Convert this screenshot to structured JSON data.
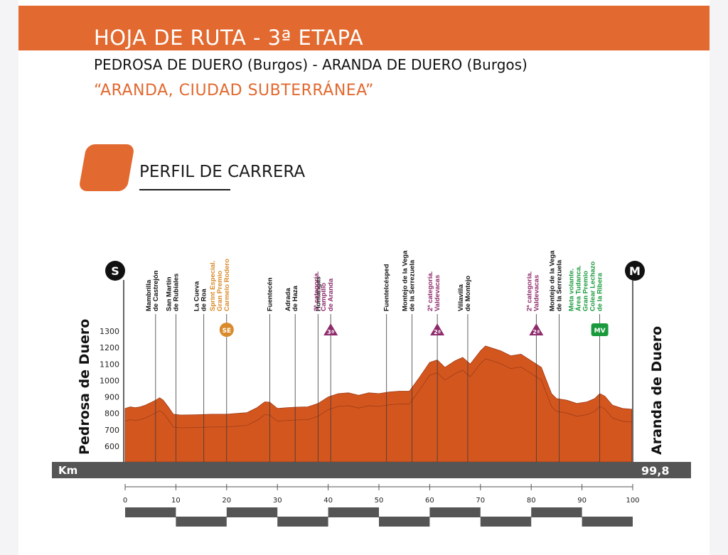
{
  "header": {
    "title": "HOJA DE RUTA - 3ª ETAPA",
    "route": "PEDROSA DE DUERO (Burgos) - ARANDA DE DUERO (Burgos)",
    "tagline": "“ARANDA, CIUDAD SUBTERRÁNEA”"
  },
  "section": {
    "title": "PERFIL DE CARRERA"
  },
  "colors": {
    "accent": "#e2692f",
    "profile": "#d4561f",
    "kom": "#8e2a6b",
    "sprint": "#d98a2a",
    "intermediate": "#1a9a3c",
    "bar": "#555555"
  },
  "profile": {
    "start_marker": "S",
    "finish_marker": "M",
    "start_town": "Pedrosa de Duero",
    "finish_town": "Aranda de Duero",
    "km_label": "Km",
    "total_km": "99,8",
    "y_ticks": [
      "1300",
      "1200",
      "1100",
      "1000",
      "900",
      "800",
      "700",
      "600"
    ],
    "x_ticks": [
      "0",
      "10",
      "20",
      "30",
      "40",
      "50",
      "60",
      "70",
      "80",
      "90",
      "100"
    ],
    "waypoints": [
      {
        "km": 6.0,
        "lines": [
          "Mambrilla",
          "de Castrejón"
        ],
        "kind": "town"
      },
      {
        "km": 10.0,
        "lines": [
          "San Martín",
          "de Rubiales"
        ],
        "kind": "town"
      },
      {
        "km": 15.5,
        "lines": [
          "La Cueva",
          "de Roa"
        ],
        "kind": "town"
      },
      {
        "km": 20.0,
        "lines": [
          "Sprint Especial.",
          "Gran Premio",
          "Carmelo Rodero"
        ],
        "kind": "sprint",
        "badge": "SE"
      },
      {
        "km": 28.5,
        "lines": [
          "Fuentecén"
        ],
        "kind": "town"
      },
      {
        "km": 33.5,
        "lines": [
          "Adrada",
          "de Haza"
        ],
        "kind": "town"
      },
      {
        "km": 38.0,
        "lines": [
          "Hontangas"
        ],
        "kind": "town"
      },
      {
        "km": 40.5,
        "lines": [
          "3ª categoría.",
          "Campillo",
          "de Aranda"
        ],
        "kind": "kom",
        "badge": "3ª"
      },
      {
        "km": 51.5,
        "lines": [
          "Fuentelcésped"
        ],
        "kind": "town"
      },
      {
        "km": 56.5,
        "lines": [
          "Montejo de la Vega",
          "de la Serrezuela"
        ],
        "kind": "town"
      },
      {
        "km": 61.5,
        "lines": [
          "2ª categoría.",
          "Valdevacas"
        ],
        "kind": "kom",
        "badge": "2ª"
      },
      {
        "km": 67.5,
        "lines": [
          "Villavilla",
          "de Montejo"
        ],
        "kind": "town"
      },
      {
        "km": 81.0,
        "lines": [
          "2ª categoría.",
          "Valdevacas"
        ],
        "kind": "kom",
        "badge": "2ª"
      },
      {
        "km": 85.5,
        "lines": [
          "Montejo de la Vega",
          "de la Serrezuela"
        ],
        "kind": "town"
      },
      {
        "km": 93.5,
        "lines": [
          "Meta volante.",
          "Área Tudanca.",
          "Gran Premio",
          "Colear Lechazo",
          "de la Ribera"
        ],
        "kind": "mv",
        "badge": "MV"
      }
    ],
    "elevation_profile": [
      [
        0,
        830
      ],
      [
        1,
        840
      ],
      [
        2,
        835
      ],
      [
        3,
        840
      ],
      [
        4,
        850
      ],
      [
        5,
        865
      ],
      [
        6,
        880
      ],
      [
        6.8,
        895
      ],
      [
        7.5,
        880
      ],
      [
        8.5,
        840
      ],
      [
        9.5,
        795
      ],
      [
        11,
        790
      ],
      [
        14,
        792
      ],
      [
        17,
        795
      ],
      [
        20,
        795
      ],
      [
        24,
        805
      ],
      [
        26,
        835
      ],
      [
        27.5,
        870
      ],
      [
        28.5,
        868
      ],
      [
        30,
        830
      ],
      [
        32,
        835
      ],
      [
        34,
        838
      ],
      [
        36,
        840
      ],
      [
        38,
        860
      ],
      [
        40,
        900
      ],
      [
        42,
        920
      ],
      [
        44,
        925
      ],
      [
        46,
        910
      ],
      [
        48,
        925
      ],
      [
        50,
        920
      ],
      [
        52,
        930
      ],
      [
        54,
        935
      ],
      [
        56,
        935
      ],
      [
        58,
        1020
      ],
      [
        60,
        1110
      ],
      [
        61.5,
        1125
      ],
      [
        63,
        1080
      ],
      [
        65,
        1120
      ],
      [
        66.5,
        1140
      ],
      [
        68,
        1100
      ],
      [
        70,
        1180
      ],
      [
        71,
        1210
      ],
      [
        72,
        1200
      ],
      [
        74,
        1180
      ],
      [
        76,
        1150
      ],
      [
        78,
        1160
      ],
      [
        80,
        1120
      ],
      [
        82,
        1080
      ],
      [
        83,
        1000
      ],
      [
        84,
        920
      ],
      [
        85,
        890
      ],
      [
        87,
        880
      ],
      [
        89,
        860
      ],
      [
        91,
        870
      ],
      [
        92.5,
        890
      ],
      [
        93.5,
        920
      ],
      [
        94.5,
        905
      ],
      [
        96,
        850
      ],
      [
        98,
        830
      ],
      [
        99.8,
        825
      ]
    ]
  }
}
